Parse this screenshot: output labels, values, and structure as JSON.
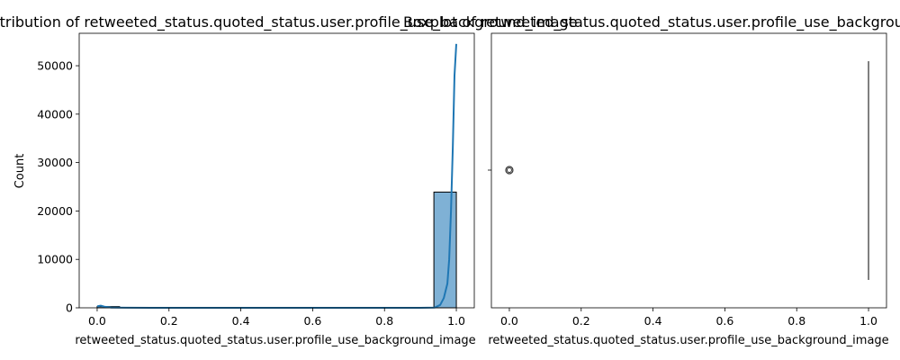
{
  "chart_data": [
    {
      "type": "bar",
      "title": "Distribution of retweeted_status.quoted_status.user.profile_use_background_image",
      "xlabel": "retweeted_status.quoted_status.user.profile_use_background_image",
      "ylabel": "Count",
      "xlim": [
        -0.05,
        1.05
      ],
      "ylim": [
        0,
        56700
      ],
      "xticks": [
        "0.0",
        "0.2",
        "0.4",
        "0.6",
        "0.8",
        "1.0"
      ],
      "yticks": [
        "0",
        "10000",
        "20000",
        "30000",
        "40000",
        "50000"
      ],
      "bins": [
        {
          "x0": 0.0,
          "x1": 0.0625,
          "count": 250
        },
        {
          "x0": 0.9375,
          "x1": 1.0,
          "count": 23900
        }
      ],
      "kde": {
        "x": [
          0.0,
          0.01,
          0.02,
          0.04,
          0.08,
          0.15,
          0.3,
          0.5,
          0.7,
          0.9,
          0.94,
          0.955,
          0.965,
          0.975,
          0.98,
          0.985,
          0.99,
          0.995,
          1.0
        ],
        "y": [
          300,
          450,
          250,
          60,
          10,
          0,
          0,
          0,
          0,
          0,
          50,
          600,
          2000,
          5000,
          10000,
          20000,
          33000,
          48000,
          54500
        ]
      },
      "colors": {
        "bar": "#7fb1d5",
        "line": "#1f77b4"
      }
    },
    {
      "type": "box",
      "title": "Boxplot of retweeted_status.quoted_status.user.profile_use_background_image",
      "xlabel": "retweeted_status.quoted_status.user.profile_use_background_image",
      "xlim": [
        -0.05,
        1.05
      ],
      "xticks": [
        "0.0",
        "0.2",
        "0.4",
        "0.6",
        "0.8",
        "1.0"
      ],
      "box": {
        "q1": 1.0,
        "median": 1.0,
        "q3": 1.0,
        "whisker_low": 1.0,
        "whisker_high": 1.0
      },
      "outliers": [
        0.0
      ],
      "colors": {
        "outlier": "#333333",
        "box": "#555555"
      }
    }
  ]
}
